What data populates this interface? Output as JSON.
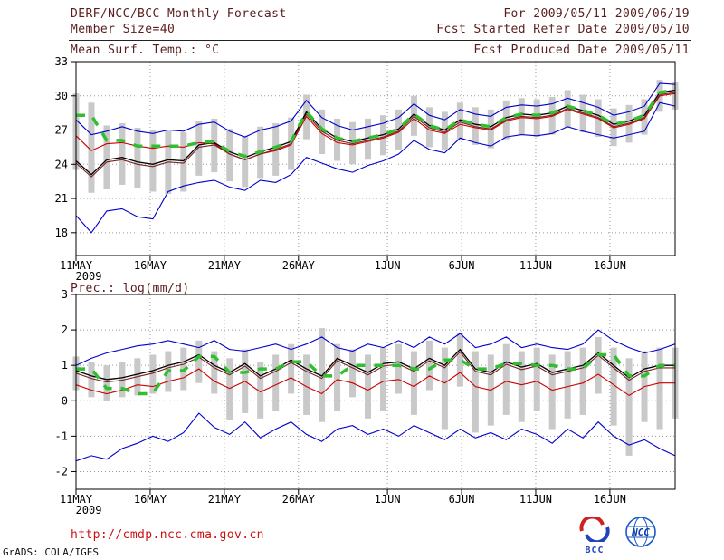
{
  "header": {
    "title": "DERF/NCC/BCC Monthly Forecast",
    "member_size": "Member Size=40",
    "forecast_range": "For 2009/05/11-2009/06/19",
    "refer_date": "Fcst Started Refer Date 2009/05/10",
    "produced_date": "Fcst Produced Date 2009/05/11"
  },
  "footer": {
    "url": "http://cmdp.ncc.cma.gov.cn",
    "stamp": "GrADS: COLA/IGES",
    "bcc_logo_text": "BCC",
    "ncc_logo_text": "NCC"
  },
  "colors": {
    "header_text": "#5a1d1d",
    "axis_text": "#000000",
    "url_text": "#cc1111",
    "stamp_text": "#111111",
    "grid": "#999999",
    "frame": "#000000",
    "bar_fill": "#c9c9c9",
    "envelope_blue": "#0000cc",
    "mean_black": "#000000",
    "control_red": "#cc0000",
    "secondary_maroon": "#7a2020",
    "reference_green": "#2fbf2f"
  },
  "chart_data": [
    {
      "id": "temperature",
      "type": "line",
      "title": "Mean Surf. Temp.: °C",
      "x_span_days": 40.4,
      "x_ticks": [
        {
          "day": 0,
          "label": "11MAY"
        },
        {
          "day": 5,
          "label": "16MAY"
        },
        {
          "day": 10,
          "label": "21MAY"
        },
        {
          "day": 15,
          "label": "26MAY"
        },
        {
          "day": 21,
          "label": "1JUN"
        },
        {
          "day": 26,
          "label": "6JUN"
        },
        {
          "day": 31,
          "label": "11JUN"
        },
        {
          "day": 36,
          "label": "16JUN"
        }
      ],
      "x_start_sublabel": "2009",
      "ylim": [
        16,
        33
      ],
      "yticks": [
        18,
        21,
        24,
        27,
        30,
        33
      ],
      "grid": true,
      "bars": {
        "name": "ensemble-spread",
        "color": "#c9c9c9",
        "low": [
          23.5,
          21.5,
          21.8,
          22.2,
          21.9,
          21.6,
          21.4,
          21.6,
          23.0,
          23.3,
          22.5,
          22.0,
          22.8,
          23.0,
          23.5,
          26.2,
          24.9,
          24.3,
          24.0,
          24.4,
          24.8,
          25.3,
          26.5,
          25.5,
          25.2,
          26.1,
          25.7,
          25.4,
          26.2,
          26.6,
          26.4,
          26.6,
          27.2,
          26.8,
          26.4,
          25.6,
          25.9,
          26.6,
          28.6,
          28.8
        ],
        "high": [
          30.2,
          29.4,
          27.4,
          27.6,
          27.2,
          27.0,
          26.9,
          26.8,
          27.8,
          28.0,
          27.1,
          26.5,
          27.3,
          27.6,
          28.1,
          30.1,
          28.8,
          28.0,
          27.7,
          28.0,
          28.3,
          28.8,
          30.0,
          29.0,
          28.6,
          29.4,
          29.0,
          28.8,
          29.6,
          29.8,
          29.7,
          29.9,
          30.5,
          30.1,
          29.7,
          28.9,
          29.2,
          29.7,
          31.4,
          31.2
        ]
      },
      "lines": [
        {
          "name": "ensemble-max",
          "color": "#0000cc",
          "width": 1.1,
          "values": [
            27.9,
            26.6,
            26.9,
            27.3,
            26.9,
            26.7,
            27.0,
            26.9,
            27.5,
            27.7,
            26.9,
            26.4,
            27.0,
            27.3,
            27.8,
            29.6,
            28.1,
            27.4,
            27.0,
            27.3,
            27.6,
            28.1,
            29.3,
            28.3,
            27.9,
            28.8,
            28.4,
            28.2,
            29.0,
            29.2,
            29.1,
            29.3,
            29.8,
            29.4,
            29.0,
            28.3,
            28.6,
            29.1,
            31.1,
            31.0
          ]
        },
        {
          "name": "ensemble-min",
          "color": "#0000cc",
          "width": 1.1,
          "values": [
            19.5,
            18.0,
            19.9,
            20.1,
            19.4,
            19.2,
            21.6,
            22.1,
            22.4,
            22.6,
            22.0,
            21.7,
            22.6,
            22.4,
            23.1,
            24.6,
            24.1,
            23.6,
            23.3,
            23.9,
            24.3,
            24.9,
            26.1,
            25.3,
            25.0,
            26.3,
            25.9,
            25.6,
            26.4,
            26.6,
            26.5,
            26.7,
            27.3,
            26.9,
            26.6,
            26.3,
            26.6,
            26.9,
            29.4,
            29.1
          ]
        },
        {
          "name": "control-run",
          "color": "#cc0000",
          "width": 1.1,
          "values": [
            26.5,
            25.2,
            25.8,
            25.9,
            25.6,
            25.4,
            25.6,
            25.5,
            25.9,
            25.8,
            24.9,
            24.4,
            24.9,
            25.2,
            25.7,
            28.2,
            26.7,
            25.9,
            25.7,
            26.0,
            26.3,
            26.8,
            28.0,
            27.0,
            26.7,
            27.5,
            27.2,
            27.0,
            27.8,
            28.1,
            28.0,
            28.2,
            28.8,
            28.4,
            28.0,
            27.2,
            27.5,
            28.0,
            30.0,
            30.2
          ]
        },
        {
          "name": "secondary-mean",
          "color": "#7a2020",
          "width": 1.1,
          "values": [
            24.1,
            22.9,
            24.2,
            24.4,
            24.0,
            23.8,
            24.2,
            24.1,
            25.5,
            25.7,
            24.9,
            24.4,
            24.9,
            25.3,
            25.8,
            28.4,
            26.9,
            26.1,
            25.8,
            26.1,
            26.4,
            26.9,
            28.2,
            27.2,
            26.8,
            27.7,
            27.3,
            27.1,
            27.9,
            28.2,
            28.1,
            28.3,
            28.9,
            28.5,
            28.1,
            27.3,
            27.6,
            28.1,
            30.1,
            30.3
          ]
        },
        {
          "name": "ensemble-mean",
          "color": "#000000",
          "width": 1.3,
          "values": [
            24.3,
            23.1,
            24.4,
            24.6,
            24.2,
            24.0,
            24.4,
            24.3,
            25.7,
            25.9,
            25.1,
            24.6,
            25.1,
            25.5,
            26.0,
            28.6,
            27.1,
            26.3,
            26.0,
            26.3,
            26.6,
            27.1,
            28.4,
            27.4,
            27.0,
            27.9,
            27.5,
            27.3,
            28.1,
            28.4,
            28.3,
            28.5,
            29.1,
            28.7,
            28.3,
            27.5,
            27.8,
            28.3,
            30.3,
            30.5
          ]
        },
        {
          "name": "reference-dashed",
          "color": "#2fbf2f",
          "width": 3.5,
          "dash": "10 10",
          "values": [
            28.3,
            28.3,
            26.1,
            26.1,
            25.6,
            25.6,
            25.6,
            25.6,
            25.9,
            26.0,
            25.1,
            24.7,
            25.1,
            25.5,
            26.0,
            28.6,
            27.1,
            26.3,
            26.0,
            26.3,
            26.6,
            27.1,
            28.4,
            27.4,
            27.0,
            27.9,
            27.5,
            27.3,
            28.1,
            28.4,
            28.3,
            28.5,
            29.1,
            28.7,
            28.3,
            27.5,
            27.8,
            28.3,
            30.3,
            30.5
          ]
        }
      ]
    },
    {
      "id": "precipitation",
      "type": "line",
      "title": "Prec.: log(mm/d)",
      "x_span_days": 40.4,
      "x_ticks": [
        {
          "day": 0,
          "label": "11MAY"
        },
        {
          "day": 5,
          "label": "16MAY"
        },
        {
          "day": 10,
          "label": "21MAY"
        },
        {
          "day": 15,
          "label": "26MAY"
        },
        {
          "day": 21,
          "label": "1JUN"
        },
        {
          "day": 26,
          "label": "6JUN"
        },
        {
          "day": 31,
          "label": "11JUN"
        },
        {
          "day": 36,
          "label": "16JUN"
        }
      ],
      "x_start_sublabel": "2009",
      "ylim": [
        -2.5,
        3
      ],
      "yticks": [
        -2,
        -1,
        0,
        1,
        2,
        3
      ],
      "grid": true,
      "bars": {
        "name": "ensemble-spread",
        "color": "#c9c9c9",
        "low": [
          0.3,
          0.1,
          0.0,
          0.1,
          0.15,
          0.2,
          0.25,
          0.3,
          0.5,
          0.2,
          -0.55,
          -0.35,
          -0.5,
          -0.3,
          0.2,
          -0.4,
          -0.6,
          -0.3,
          0.1,
          -0.5,
          -0.3,
          0.2,
          -0.4,
          0.3,
          -0.8,
          0.4,
          -0.9,
          -0.7,
          -0.4,
          -0.6,
          -0.3,
          -0.8,
          -0.5,
          -0.4,
          0.2,
          -0.7,
          -1.55,
          -0.6,
          -0.8,
          -0.5
        ],
        "high": [
          1.25,
          1.1,
          1.0,
          1.1,
          1.2,
          1.3,
          1.4,
          1.5,
          1.7,
          1.4,
          1.2,
          1.45,
          1.1,
          1.3,
          1.6,
          1.3,
          2.05,
          1.6,
          1.45,
          1.3,
          1.5,
          1.6,
          1.4,
          1.7,
          1.5,
          1.9,
          1.4,
          1.3,
          1.6,
          1.4,
          1.5,
          1.3,
          1.4,
          1.5,
          1.8,
          1.5,
          1.2,
          1.4,
          1.5,
          1.5
        ]
      },
      "lines": [
        {
          "name": "ensemble-max",
          "color": "#0000cc",
          "width": 1.1,
          "values": [
            1.0,
            1.2,
            1.35,
            1.45,
            1.55,
            1.6,
            1.7,
            1.6,
            1.5,
            1.7,
            1.45,
            1.4,
            1.5,
            1.6,
            1.45,
            1.6,
            1.8,
            1.5,
            1.4,
            1.6,
            1.5,
            1.7,
            1.5,
            1.8,
            1.6,
            1.9,
            1.5,
            1.6,
            1.8,
            1.5,
            1.6,
            1.5,
            1.45,
            1.6,
            2.0,
            1.7,
            1.5,
            1.35,
            1.45,
            1.6
          ]
        },
        {
          "name": "ensemble-min",
          "color": "#0000cc",
          "width": 1.1,
          "values": [
            -1.7,
            -1.55,
            -1.65,
            -1.35,
            -1.2,
            -1.0,
            -1.15,
            -0.9,
            -0.35,
            -0.75,
            -0.95,
            -0.6,
            -1.05,
            -0.8,
            -0.6,
            -0.95,
            -1.15,
            -0.8,
            -0.7,
            -0.95,
            -0.8,
            -1.0,
            -0.7,
            -0.9,
            -1.1,
            -0.8,
            -1.05,
            -0.9,
            -1.1,
            -0.8,
            -0.95,
            -1.2,
            -0.8,
            -1.05,
            -0.6,
            -1.0,
            -1.25,
            -1.1,
            -1.35,
            -1.55
          ]
        },
        {
          "name": "control-run",
          "color": "#cc0000",
          "width": 1.1,
          "values": [
            0.45,
            0.3,
            0.2,
            0.3,
            0.45,
            0.4,
            0.55,
            0.65,
            0.9,
            0.55,
            0.35,
            0.55,
            0.25,
            0.45,
            0.65,
            0.4,
            0.2,
            0.6,
            0.5,
            0.3,
            0.55,
            0.6,
            0.4,
            0.7,
            0.5,
            0.8,
            0.4,
            0.3,
            0.55,
            0.45,
            0.55,
            0.3,
            0.4,
            0.5,
            0.75,
            0.45,
            0.15,
            0.4,
            0.5,
            0.5
          ]
        },
        {
          "name": "secondary-mean",
          "color": "#7a2020",
          "width": 1.1,
          "values": [
            0.78,
            0.63,
            0.53,
            0.58,
            0.68,
            0.78,
            0.93,
            1.03,
            1.23,
            0.93,
            0.73,
            0.98,
            0.63,
            0.83,
            1.08,
            0.83,
            0.63,
            1.13,
            0.93,
            0.73,
            0.98,
            1.03,
            0.83,
            1.13,
            0.93,
            1.38,
            0.83,
            0.73,
            1.03,
            0.88,
            0.98,
            0.73,
            0.83,
            0.93,
            1.28,
            0.93,
            0.58,
            0.83,
            0.93,
            0.93
          ]
        },
        {
          "name": "ensemble-mean",
          "color": "#000000",
          "width": 1.3,
          "values": [
            0.85,
            0.7,
            0.6,
            0.65,
            0.75,
            0.85,
            1.0,
            1.1,
            1.3,
            1.0,
            0.8,
            1.05,
            0.7,
            0.9,
            1.15,
            0.9,
            0.7,
            1.2,
            1.0,
            0.8,
            1.05,
            1.1,
            0.9,
            1.2,
            1.0,
            1.45,
            0.9,
            0.8,
            1.1,
            0.95,
            1.05,
            0.8,
            0.9,
            1.0,
            1.35,
            1.0,
            0.65,
            0.9,
            1.0,
            1.0
          ]
        },
        {
          "name": "reference-dashed",
          "color": "#2fbf2f",
          "width": 3.5,
          "dash": "10 10",
          "values": [
            0.9,
            0.9,
            0.35,
            0.35,
            0.2,
            0.2,
            0.85,
            0.85,
            1.25,
            1.25,
            0.8,
            0.8,
            0.9,
            0.9,
            1.1,
            1.1,
            0.7,
            0.7,
            1.0,
            1.0,
            1.0,
            1.0,
            0.9,
            0.9,
            1.15,
            1.15,
            0.9,
            0.9,
            1.05,
            1.05,
            1.0,
            1.0,
            0.9,
            0.9,
            1.3,
            1.3,
            0.7,
            0.7,
            1.0,
            1.0
          ]
        }
      ]
    }
  ]
}
